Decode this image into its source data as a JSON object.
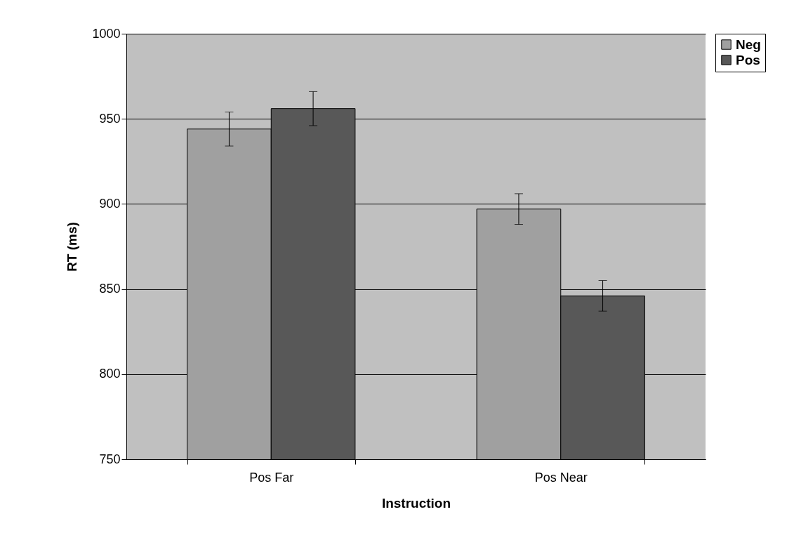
{
  "chart_data": {
    "type": "bar",
    "xlabel": "Instruction",
    "ylabel": "RT (ms)",
    "categories": [
      "Pos Far",
      "Pos Near"
    ],
    "series": [
      {
        "name": "Neg",
        "color": "#a0a0a0",
        "values": [
          944,
          897
        ],
        "errors": [
          10,
          9
        ]
      },
      {
        "name": "Pos",
        "color": "#585858",
        "values": [
          956,
          846
        ],
        "errors": [
          10,
          9
        ]
      }
    ],
    "ylim": [
      750,
      1000
    ],
    "yticks": [
      750,
      800,
      850,
      900,
      950,
      1000
    ],
    "grid": "y",
    "legend": "right"
  }
}
